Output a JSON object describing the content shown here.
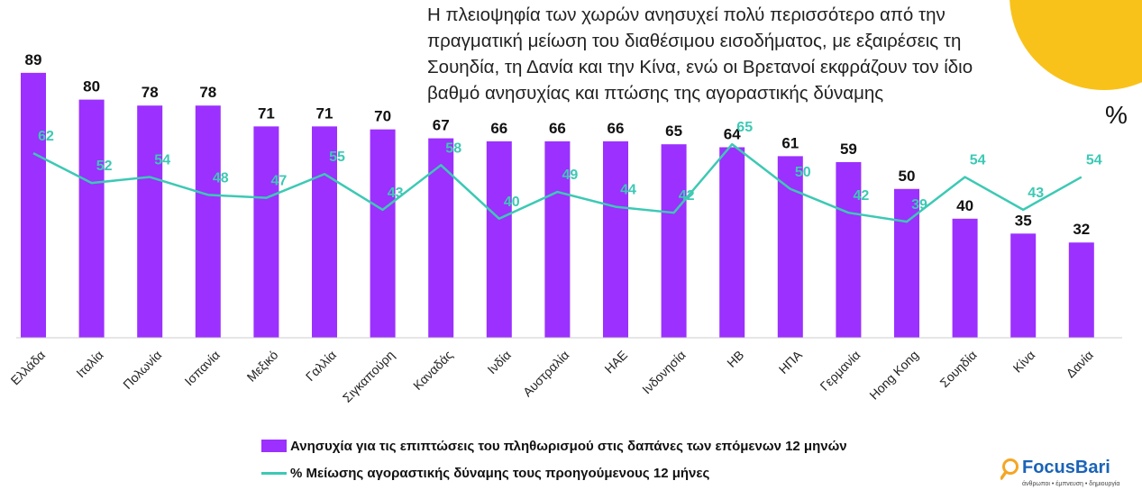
{
  "subtitle": {
    "lines": [
      "Η πλειοψηφία των χωρών ανησυχεί πολύ περισσότερο από την",
      "πραγματική μείωση του διαθέσιμου εισοδήματος, με εξαιρέσεις τη",
      "Σουηδία, τη Δανία και την Κίνα, ενώ οι Βρετανοί εκφράζουν τον ίδιο",
      "βαθμό ανησυχίας και πτώσης της αγοραστικής δύναμης"
    ]
  },
  "unit_label": "%",
  "legend": {
    "bar_label": "Ανησυχία για τις επιπτώσεις του πληθωρισμού στις δαπάνες των επόμενων 12 μηνών",
    "line_label": "% Μείωσης αγοραστικής δύναμης τους προηγούμενους 12 μήνες"
  },
  "logo": {
    "name": "FocusBari",
    "tagline": "άνθρωποι • έμπνευση • δημιουργία"
  },
  "colors": {
    "bar": "#9b30ff",
    "line": "#3cc9b4",
    "accent_circle": "#f9c21a",
    "logo_blue": "#1a63b8",
    "logo_orange": "#f5a623"
  },
  "chart_data": {
    "type": "bar",
    "categories": [
      "Ελλάδα",
      "Ιταλία",
      "Πολωνία",
      "Ισπανία",
      "Μεξικό",
      "Γαλλία",
      "Σιγκαπούρη",
      "Καναδάς",
      "Ινδία",
      "Αυστραλία",
      "ΗΑΕ",
      "Ινδονησία",
      "ΗΒ",
      "ΗΠΑ",
      "Γερμανία",
      "Hong Kong",
      "Σουηδία",
      "Κίνα",
      "Δανία"
    ],
    "series": [
      {
        "name": "Ανησυχία για τις επιπτώσεις του πληθωρισμού στις δαπάνες των επόμενων 12 μηνών",
        "type": "bar",
        "values": [
          89,
          80,
          78,
          78,
          71,
          71,
          70,
          67,
          66,
          66,
          66,
          65,
          64,
          61,
          59,
          50,
          40,
          35,
          32
        ]
      },
      {
        "name": "% Μείωσης αγοραστικής δύναμης τους προηγούμενους 12 μήνες",
        "type": "line",
        "values": [
          62,
          52,
          54,
          48,
          47,
          55,
          43,
          58,
          40,
          49,
          44,
          42,
          65,
          50,
          42,
          39,
          54,
          43,
          54
        ]
      }
    ],
    "ylim": [
      0,
      100
    ],
    "grid": false,
    "legend_position": "bottom",
    "data_labels": true
  }
}
